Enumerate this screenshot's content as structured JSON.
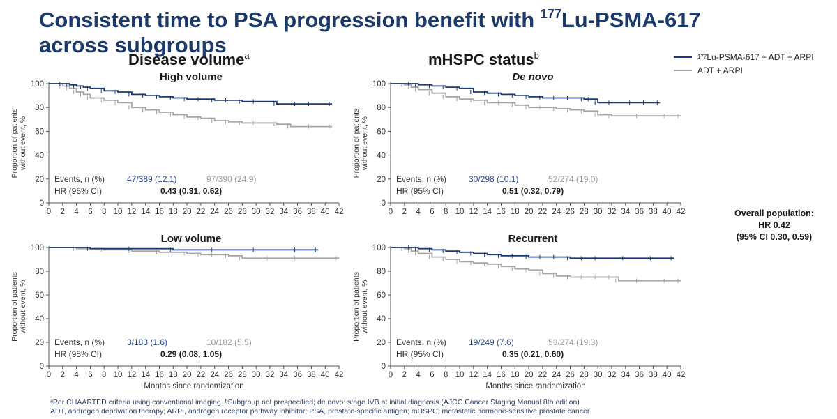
{
  "slide": {
    "title_line1_pre": "Consistent time to PSA progression benefit with ",
    "title_sup": "177",
    "title_line1_post": "Lu-PSMA-617",
    "title_line2": "across subgroups",
    "section_left": "Disease volume",
    "section_left_sup": "a",
    "section_right": "mHSPC status",
    "section_right_sup": "b"
  },
  "legend": {
    "items": [
      {
        "sup": "177",
        "label": "Lu-PSMA-617 + ADT + ARPI",
        "color": "#1b3a7a"
      },
      {
        "sup": "",
        "label": "ADT + ARPI",
        "color": "#a6a6a6"
      }
    ]
  },
  "overall": {
    "line1": "Overall population:",
    "line2": "HR 0.42",
    "line3": "(95% CI 0.30, 0.59)"
  },
  "footnotes": {
    "line1": "ᵃPer CHAARTED criteria using conventional imaging. ᵇSubgroup not prespecified; de novo: stage IVB at initial diagnosis (AJCC Cancer Staging Manual 8th edition)",
    "line2": "ADT, androgen deprivation therapy; ARPI, androgen receptor pathway inhibitor; PSA, prostate-specific antigen; mHSPC, metastatic hormone-sensitive prostate cancer"
  },
  "chart_data": [
    {
      "type": "line",
      "subtitle": "High volume",
      "italic": false,
      "ylabel": "Proportion of patients without event, %",
      "xlabel": "",
      "xlim": [
        0,
        42
      ],
      "ylim": [
        0,
        100
      ],
      "xticks": [
        0,
        2,
        4,
        6,
        8,
        10,
        12,
        14,
        16,
        18,
        20,
        22,
        24,
        26,
        28,
        30,
        32,
        34,
        36,
        38,
        40,
        42
      ],
      "yticks": [
        0,
        20,
        40,
        60,
        80,
        100
      ],
      "events_label": "Events, n (%)",
      "events_treat": "47/389 (12.1)",
      "events_ctrl": "97/390 (24.9)",
      "hr_label": "HR (95% CI)",
      "hr_value": "0.43",
      "hr_ci": " (0.31, 0.62)",
      "series": [
        {
          "color": "#1b3a7a",
          "x": [
            0,
            2,
            3,
            4,
            5,
            6,
            8,
            10,
            12,
            14,
            16,
            18,
            20,
            22,
            24,
            26,
            28,
            30,
            33,
            36,
            38,
            41
          ],
          "y": [
            100,
            100,
            99,
            98,
            97,
            96,
            94,
            93,
            91,
            90,
            89,
            88,
            87,
            87,
            86,
            86,
            85,
            85,
            83,
            83,
            83,
            83
          ]
        },
        {
          "color": "#a6a6a6",
          "x": [
            0,
            2,
            3,
            4,
            5,
            6,
            8,
            10,
            12,
            14,
            16,
            18,
            20,
            22,
            24,
            26,
            28,
            30,
            33,
            35,
            38,
            41
          ],
          "y": [
            100,
            98,
            96,
            93,
            91,
            88,
            86,
            84,
            80,
            78,
            76,
            74,
            72,
            71,
            69,
            68,
            67,
            67,
            66,
            64,
            64,
            64
          ]
        }
      ]
    },
    {
      "type": "line",
      "subtitle": "De novo",
      "italic": true,
      "ylabel": "Proportion of patients without event, %",
      "xlabel": "",
      "xlim": [
        0,
        42
      ],
      "ylim": [
        0,
        100
      ],
      "xticks": [
        0,
        2,
        4,
        6,
        8,
        10,
        12,
        14,
        16,
        18,
        20,
        22,
        24,
        26,
        28,
        30,
        32,
        34,
        36,
        38,
        40,
        42
      ],
      "yticks": [
        0,
        20,
        40,
        60,
        80,
        100
      ],
      "events_label": "Events, n (%)",
      "events_treat": "30/298 (10.1)",
      "events_ctrl": "52/274 (19.0)",
      "hr_label": "HR (95% CI)",
      "hr_value": "0.51",
      "hr_ci": " (0.32, 0.79)",
      "series": [
        {
          "color": "#1b3a7a",
          "x": [
            0,
            3,
            4,
            6,
            8,
            10,
            12,
            14,
            16,
            18,
            20,
            22,
            24,
            26,
            28,
            29,
            30,
            32,
            35,
            37,
            39
          ],
          "y": [
            100,
            100,
            99,
            98,
            97,
            96,
            93,
            92,
            91,
            90,
            89,
            88,
            88,
            88,
            87,
            87,
            84,
            84,
            84,
            84,
            84
          ]
        },
        {
          "color": "#a6a6a6",
          "x": [
            0,
            2,
            3,
            4,
            6,
            8,
            10,
            12,
            14,
            16,
            18,
            20,
            22,
            24,
            26,
            28,
            30,
            32,
            36,
            40,
            42
          ],
          "y": [
            100,
            99,
            97,
            95,
            92,
            89,
            87,
            86,
            84,
            84,
            82,
            80,
            80,
            79,
            78,
            77,
            74,
            73,
            73,
            73,
            73
          ]
        }
      ]
    },
    {
      "type": "line",
      "subtitle": "Low volume",
      "italic": false,
      "ylabel": "Proportion of patients without event, %",
      "xlabel": "Months since randomization",
      "xlim": [
        0,
        42
      ],
      "ylim": [
        0,
        100
      ],
      "xticks": [
        0,
        2,
        4,
        6,
        8,
        10,
        12,
        14,
        16,
        18,
        20,
        22,
        24,
        26,
        28,
        30,
        32,
        34,
        36,
        38,
        40,
        42
      ],
      "yticks": [
        0,
        20,
        40,
        60,
        80,
        100
      ],
      "events_label": "Events, n (%)",
      "events_treat": "3/183 (1.6)",
      "events_ctrl": "10/182 (5.5)",
      "hr_label": "HR (95% CI)",
      "hr_value": "0.29",
      "hr_ci": " (0.08, 1.05)",
      "series": [
        {
          "color": "#1b3a7a",
          "x": [
            0,
            6,
            12,
            18,
            24,
            30,
            36,
            39
          ],
          "y": [
            100,
            99,
            99,
            98,
            98,
            98,
            98,
            98
          ]
        },
        {
          "color": "#a6a6a6",
          "x": [
            0,
            4,
            8,
            12,
            16,
            20,
            22,
            24,
            26,
            28,
            32,
            36,
            42
          ],
          "y": [
            100,
            99,
            98,
            97,
            96,
            95,
            94,
            94,
            93,
            91,
            91,
            91,
            91
          ]
        }
      ]
    },
    {
      "type": "line",
      "subtitle": "Recurrent",
      "italic": false,
      "ylabel": "Proportion of patients without event, %",
      "xlabel": "Months since randomization",
      "xlim": [
        0,
        42
      ],
      "ylim": [
        0,
        100
      ],
      "xticks": [
        0,
        2,
        4,
        6,
        8,
        10,
        12,
        14,
        16,
        18,
        20,
        22,
        24,
        26,
        28,
        30,
        32,
        34,
        36,
        38,
        40,
        42
      ],
      "yticks": [
        0,
        20,
        40,
        60,
        80,
        100
      ],
      "events_label": "Events, n (%)",
      "events_treat": "19/249 (7.6)",
      "events_ctrl": "53/274 (19.3)",
      "hr_label": "HR (95% CI)",
      "hr_value": "0.35",
      "hr_ci": " (0.21, 0.60)",
      "series": [
        {
          "color": "#1b3a7a",
          "x": [
            0,
            3,
            4,
            6,
            8,
            10,
            12,
            14,
            16,
            18,
            20,
            22,
            24,
            26,
            28,
            30,
            34,
            38,
            41
          ],
          "y": [
            100,
            100,
            99,
            98,
            97,
            96,
            95,
            94,
            93,
            93,
            92,
            92,
            92,
            91,
            91,
            91,
            91,
            91,
            91
          ]
        },
        {
          "color": "#a6a6a6",
          "x": [
            0,
            2,
            3,
            4,
            6,
            8,
            10,
            12,
            14,
            16,
            18,
            20,
            22,
            24,
            26,
            28,
            30,
            32,
            33,
            36,
            40,
            42
          ],
          "y": [
            100,
            99,
            97,
            95,
            92,
            90,
            88,
            87,
            86,
            84,
            82,
            81,
            78,
            76,
            75,
            75,
            75,
            75,
            72,
            72,
            72,
            72
          ]
        }
      ]
    }
  ]
}
